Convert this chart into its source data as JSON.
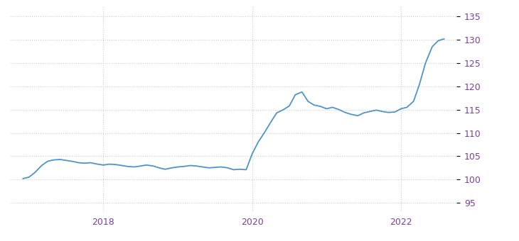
{
  "line_color": "#4d94cc",
  "background_color": "#ffffff",
  "grid_color": "#cccccc",
  "ytick_color": "#7b3fa0",
  "xtick_color": "#7b3fa0",
  "ylim": [
    93,
    137
  ],
  "yticks": [
    95,
    100,
    105,
    110,
    115,
    120,
    125,
    130,
    135
  ],
  "xticks_years": [
    2018,
    2020,
    2022
  ],
  "xlim_start": 2016.75,
  "xlim_end": 2022.75,
  "x": [
    2016.92,
    2017.0,
    2017.08,
    2017.17,
    2017.25,
    2017.33,
    2017.42,
    2017.5,
    2017.58,
    2017.67,
    2017.75,
    2017.83,
    2017.92,
    2018.0,
    2018.08,
    2018.17,
    2018.25,
    2018.33,
    2018.42,
    2018.5,
    2018.58,
    2018.67,
    2018.75,
    2018.83,
    2018.92,
    2019.0,
    2019.08,
    2019.17,
    2019.25,
    2019.33,
    2019.42,
    2019.5,
    2019.58,
    2019.67,
    2019.75,
    2019.83,
    2019.92,
    2020.0,
    2020.08,
    2020.17,
    2020.25,
    2020.33,
    2020.42,
    2020.5,
    2020.58,
    2020.67,
    2020.75,
    2020.83,
    2020.92,
    2021.0,
    2021.08,
    2021.17,
    2021.25,
    2021.33,
    2021.42,
    2021.5,
    2021.58,
    2021.67,
    2021.75,
    2021.83,
    2021.92,
    2022.0,
    2022.08,
    2022.17,
    2022.25,
    2022.33,
    2022.42,
    2022.5,
    2022.58
  ],
  "y": [
    100.2,
    100.5,
    101.5,
    103.0,
    103.9,
    104.2,
    104.3,
    104.1,
    103.9,
    103.6,
    103.5,
    103.6,
    103.3,
    103.1,
    103.3,
    103.2,
    103.0,
    102.8,
    102.7,
    102.9,
    103.1,
    102.9,
    102.5,
    102.2,
    102.5,
    102.7,
    102.8,
    103.0,
    102.9,
    102.7,
    102.5,
    102.6,
    102.7,
    102.5,
    102.1,
    102.2,
    102.1,
    105.5,
    108.0,
    110.2,
    112.3,
    114.3,
    115.0,
    115.8,
    118.2,
    118.8,
    116.8,
    116.0,
    115.7,
    115.2,
    115.5,
    115.0,
    114.4,
    114.0,
    113.7,
    114.3,
    114.6,
    114.9,
    114.6,
    114.4,
    114.5,
    115.2,
    115.5,
    116.8,
    120.5,
    125.0,
    128.5,
    129.8,
    130.2
  ]
}
